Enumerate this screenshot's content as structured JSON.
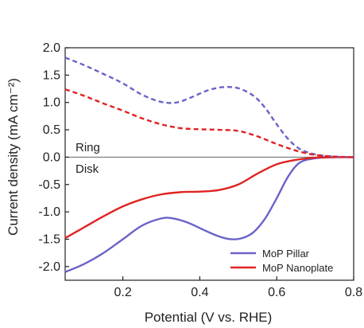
{
  "chart_data": {
    "type": "line",
    "xlabel": "Potential (V vs. RHE)",
    "ylabel": "Current density (mA cm⁻²)",
    "xlim": [
      0.05,
      0.8
    ],
    "ylim": [
      -2.25,
      2.0
    ],
    "x_ticks": [
      "0.2",
      "0.4",
      "0.6",
      "0.8"
    ],
    "x_tick_values": [
      0.2,
      0.4,
      0.6,
      0.8
    ],
    "y_ticks": [
      "2.0",
      "1.5",
      "1.0",
      "0.5",
      "0.0",
      "-0.5",
      "-1.0",
      "-1.5",
      "-2.0"
    ],
    "y_tick_values": [
      2.0,
      1.5,
      1.0,
      0.5,
      0.0,
      -0.5,
      -1.0,
      -1.5,
      -2.0
    ],
    "annotations": {
      "ring": "Ring",
      "disk": "Disk"
    },
    "legend_position": "bottom-right",
    "grid": false,
    "zero_line": true,
    "series": [
      {
        "name": "MoP Pillar",
        "segment": "disk",
        "style": "solid",
        "color": "#6a63c9",
        "x": [
          0.05,
          0.1,
          0.15,
          0.2,
          0.25,
          0.3,
          0.33,
          0.37,
          0.41,
          0.45,
          0.48,
          0.51,
          0.54,
          0.57,
          0.6,
          0.63,
          0.66,
          0.7,
          0.75,
          0.8
        ],
        "y": [
          -2.1,
          -1.95,
          -1.75,
          -1.5,
          -1.25,
          -1.12,
          -1.12,
          -1.2,
          -1.33,
          -1.45,
          -1.5,
          -1.48,
          -1.37,
          -1.12,
          -0.75,
          -0.35,
          -0.1,
          -0.02,
          0.0,
          0.0
        ]
      },
      {
        "name": "MoP Nanoplate",
        "segment": "disk",
        "style": "solid",
        "color": "#e02323",
        "x": [
          0.05,
          0.1,
          0.15,
          0.2,
          0.25,
          0.3,
          0.35,
          0.4,
          0.45,
          0.5,
          0.55,
          0.6,
          0.65,
          0.7,
          0.75,
          0.8
        ],
        "y": [
          -1.48,
          -1.28,
          -1.08,
          -0.9,
          -0.77,
          -0.68,
          -0.64,
          -0.63,
          -0.6,
          -0.5,
          -0.3,
          -0.13,
          -0.05,
          -0.01,
          0.0,
          0.0
        ]
      },
      {
        "name": "MoP Pillar",
        "segment": "ring",
        "style": "dashed",
        "color": "#6a63c9",
        "x": [
          0.05,
          0.1,
          0.15,
          0.2,
          0.25,
          0.3,
          0.34,
          0.38,
          0.42,
          0.46,
          0.5,
          0.54,
          0.57,
          0.6,
          0.63,
          0.66,
          0.7,
          0.75,
          0.8
        ],
        "y": [
          1.82,
          1.68,
          1.52,
          1.35,
          1.14,
          1.01,
          1.0,
          1.1,
          1.22,
          1.28,
          1.26,
          1.12,
          0.9,
          0.6,
          0.33,
          0.15,
          0.05,
          0.01,
          0.0
        ]
      },
      {
        "name": "MoP Nanoplate",
        "segment": "ring",
        "style": "dashed",
        "color": "#e02323",
        "x": [
          0.05,
          0.1,
          0.15,
          0.2,
          0.25,
          0.3,
          0.35,
          0.4,
          0.45,
          0.5,
          0.55,
          0.6,
          0.65,
          0.7,
          0.75,
          0.8
        ],
        "y": [
          1.24,
          1.12,
          0.98,
          0.85,
          0.71,
          0.6,
          0.53,
          0.51,
          0.5,
          0.48,
          0.38,
          0.24,
          0.12,
          0.04,
          0.01,
          0.0
        ]
      }
    ],
    "legend": [
      {
        "name": "MoP Pillar",
        "color": "#6a63c9"
      },
      {
        "name": "MoP Nanoplate",
        "color": "#e02323"
      }
    ]
  }
}
